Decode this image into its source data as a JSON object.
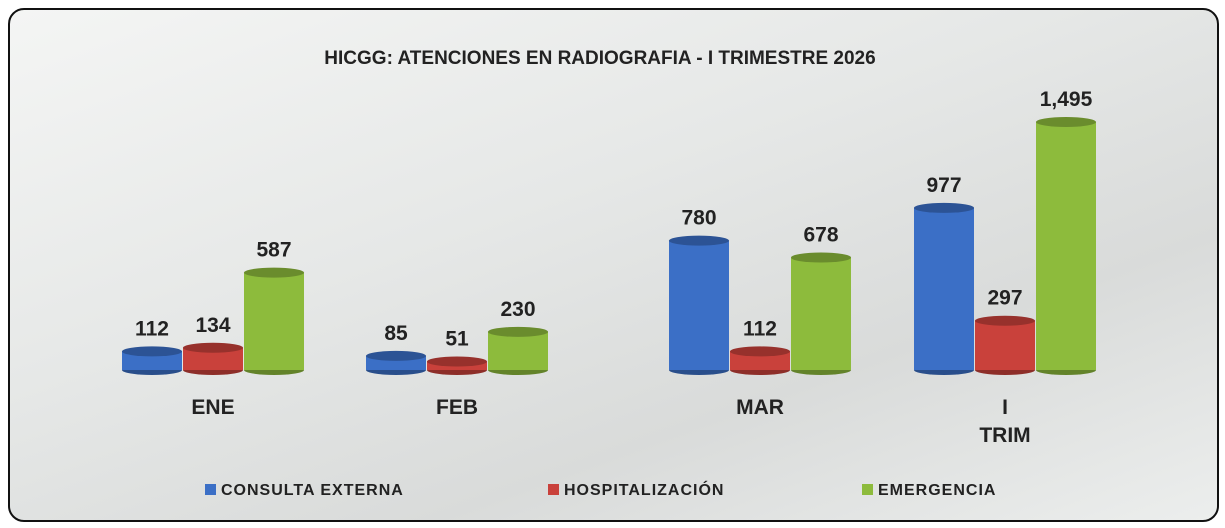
{
  "chart_data": {
    "type": "bar",
    "title": "HICGG: ATENCIONES EN RADIOGRAFIA - I TRIMESTRE 2026",
    "categories": [
      "ENE",
      "FEB",
      "MAR",
      "I TRIM"
    ],
    "series": [
      {
        "name": "CONSULTA EXTERNA",
        "color": "#3b6fc6",
        "values": [
          112,
          85,
          780,
          977
        ]
      },
      {
        "name": "HOSPITALIZACIÓN",
        "color": "#c9413b",
        "values": [
          134,
          51,
          112,
          297
        ]
      },
      {
        "name": "EMERGENCIA",
        "color": "#8dbb3c",
        "values": [
          587,
          230,
          678,
          1495
        ],
        "value_labels": [
          "587",
          "230",
          "678",
          "1,495"
        ]
      }
    ]
  }
}
